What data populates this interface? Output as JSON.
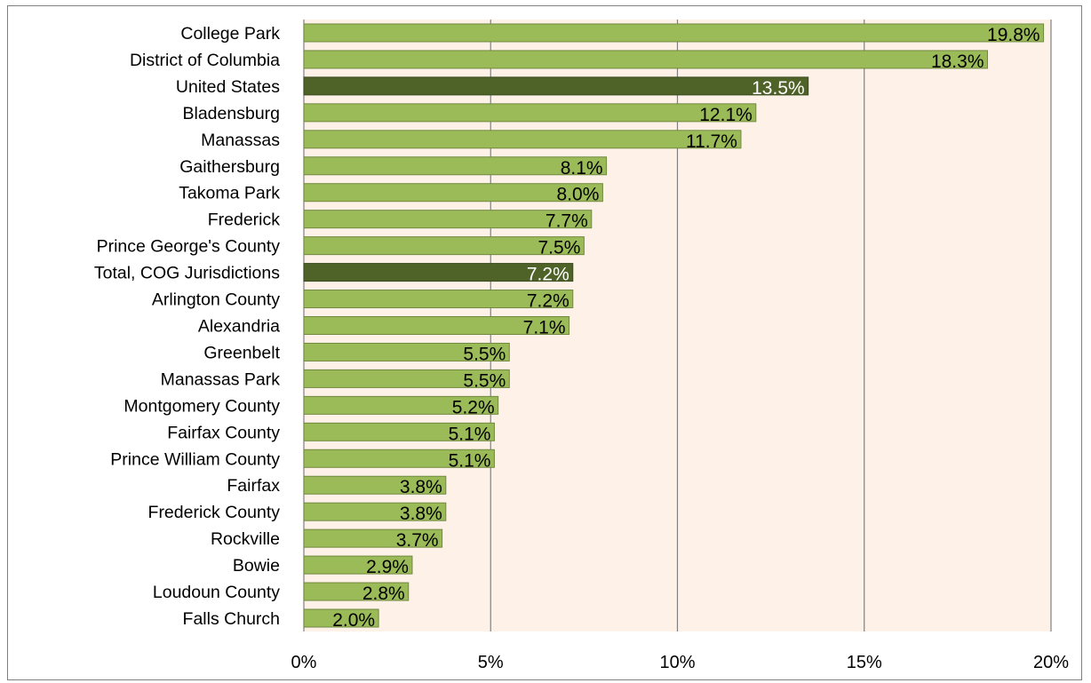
{
  "chart_data": {
    "type": "bar",
    "orientation": "horizontal",
    "categories": [
      "College Park",
      "District of Columbia",
      "United States",
      "Bladensburg",
      "Manassas",
      "Gaithersburg",
      "Takoma Park",
      "Frederick",
      "Prince George's County",
      "Total, COG Jurisdictions",
      "Arlington County",
      "Alexandria",
      "Greenbelt",
      "Manassas Park",
      "Montgomery County",
      "Fairfax County",
      "Prince William County",
      "Fairfax",
      "Frederick County",
      "Rockville",
      "Bowie",
      "Loudoun County",
      "Falls Church"
    ],
    "values": [
      19.8,
      18.3,
      13.5,
      12.1,
      11.7,
      8.1,
      8.0,
      7.7,
      7.5,
      7.2,
      7.2,
      7.1,
      5.5,
      5.5,
      5.2,
      5.1,
      5.1,
      3.8,
      3.8,
      3.7,
      2.9,
      2.8,
      2.0
    ],
    "data_labels": [
      "19.8%",
      "18.3%",
      "13.5%",
      "12.1%",
      "11.7%",
      "8.1%",
      "8.0%",
      "7.7%",
      "7.5%",
      "7.2%",
      "7.2%",
      "7.1%",
      "5.5%",
      "5.5%",
      "5.2%",
      "5.1%",
      "5.1%",
      "3.8%",
      "3.8%",
      "3.7%",
      "2.9%",
      "2.8%",
      "2.0%"
    ],
    "highlighted": [
      "United States",
      "Total, COG Jurisdictions"
    ],
    "xlim": [
      0,
      20
    ],
    "x_ticks": [
      "0%",
      "5%",
      "10%",
      "15%",
      "20%"
    ],
    "x_tick_values": [
      0,
      5,
      10,
      15,
      20
    ],
    "grid": "vertical",
    "legend": "none",
    "colors": {
      "bar": "#9bbb59",
      "bar_stroke": "#71893f",
      "highlight": "#4f6228",
      "highlight_stroke": "#3b4a1e",
      "plot_background": "#fdf1e8",
      "gridline": "#808080",
      "label_dark": "#000000",
      "label_light": "#ffffff"
    }
  }
}
